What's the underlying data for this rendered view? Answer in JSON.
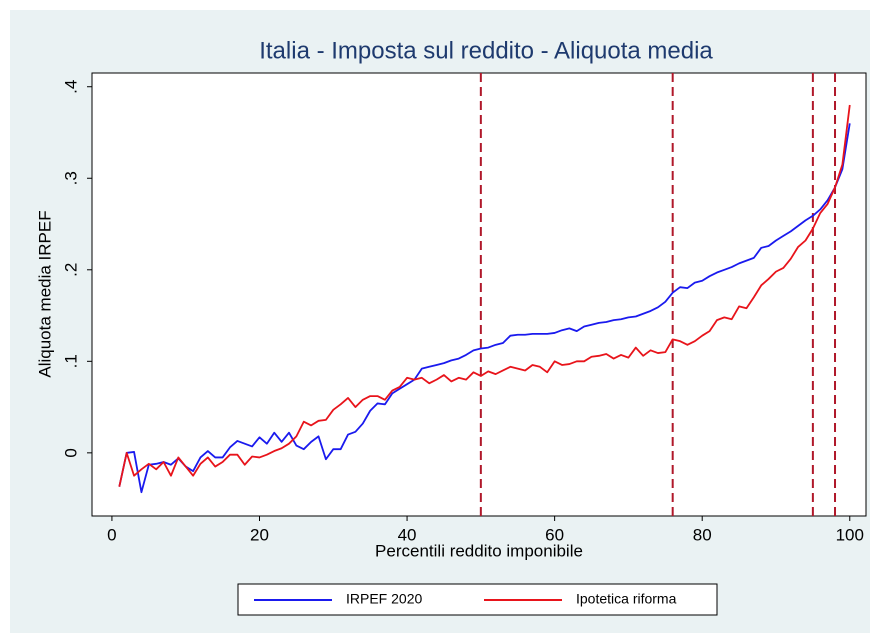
{
  "chart_data": {
    "type": "line",
    "title": "Italia - Imposta sul reddito - Aliquota media",
    "x_label": "Percentili reddito imponibile",
    "y_label": "Aliquota media IRPEF",
    "x": [
      1,
      2,
      3,
      4,
      5,
      6,
      7,
      8,
      9,
      10,
      11,
      12,
      13,
      14,
      15,
      16,
      17,
      18,
      19,
      20,
      21,
      22,
      23,
      24,
      25,
      26,
      27,
      28,
      29,
      30,
      31,
      32,
      33,
      34,
      35,
      36,
      37,
      38,
      39,
      40,
      41,
      42,
      43,
      44,
      45,
      46,
      47,
      48,
      49,
      50,
      51,
      52,
      53,
      54,
      55,
      56,
      57,
      58,
      59,
      60,
      61,
      62,
      63,
      64,
      65,
      66,
      67,
      68,
      69,
      70,
      71,
      72,
      73,
      74,
      75,
      76,
      77,
      78,
      79,
      80,
      81,
      82,
      83,
      84,
      85,
      86,
      87,
      88,
      89,
      90,
      91,
      92,
      93,
      94,
      95,
      96,
      97,
      98,
      99,
      100
    ],
    "series": [
      {
        "name": "IRPEF 2020",
        "color": "#1a1aee",
        "values": [
          -0.037,
          0.0,
          0.001,
          -0.043,
          -0.013,
          -0.012,
          -0.01,
          -0.013,
          -0.006,
          -0.015,
          -0.02,
          -0.005,
          0.002,
          -0.005,
          -0.005,
          0.006,
          0.013,
          0.01,
          0.007,
          0.017,
          0.01,
          0.022,
          0.012,
          0.022,
          0.008,
          0.004,
          0.012,
          0.018,
          -0.007,
          0.004,
          0.004,
          0.02,
          0.023,
          0.032,
          0.046,
          0.054,
          0.053,
          0.065,
          0.07,
          0.075,
          0.08,
          0.092,
          0.094,
          0.096,
          0.098,
          0.101,
          0.103,
          0.107,
          0.112,
          0.114,
          0.115,
          0.118,
          0.12,
          0.128,
          0.129,
          0.129,
          0.13,
          0.13,
          0.13,
          0.131,
          0.134,
          0.136,
          0.133,
          0.138,
          0.14,
          0.142,
          0.143,
          0.145,
          0.146,
          0.148,
          0.149,
          0.152,
          0.155,
          0.159,
          0.165,
          0.175,
          0.181,
          0.18,
          0.186,
          0.188,
          0.193,
          0.197,
          0.2,
          0.203,
          0.207,
          0.21,
          0.213,
          0.224,
          0.226,
          0.232,
          0.237,
          0.242,
          0.248,
          0.254,
          0.259,
          0.266,
          0.276,
          0.29,
          0.31,
          0.36
        ]
      },
      {
        "name": "Ipotetica riforma",
        "color": "#e8141b",
        "values": [
          -0.037,
          0.0,
          -0.025,
          -0.018,
          -0.012,
          -0.018,
          -0.01,
          -0.025,
          -0.005,
          -0.015,
          -0.025,
          -0.012,
          -0.005,
          -0.015,
          -0.01,
          -0.002,
          -0.002,
          -0.013,
          -0.004,
          -0.005,
          -0.002,
          0.002,
          0.005,
          0.01,
          0.018,
          0.034,
          0.03,
          0.035,
          0.036,
          0.047,
          0.053,
          0.06,
          0.05,
          0.058,
          0.062,
          0.062,
          0.058,
          0.068,
          0.072,
          0.082,
          0.08,
          0.082,
          0.076,
          0.08,
          0.085,
          0.078,
          0.082,
          0.08,
          0.088,
          0.084,
          0.089,
          0.086,
          0.09,
          0.094,
          0.092,
          0.09,
          0.096,
          0.094,
          0.088,
          0.1,
          0.096,
          0.097,
          0.1,
          0.1,
          0.105,
          0.106,
          0.108,
          0.103,
          0.107,
          0.104,
          0.115,
          0.106,
          0.112,
          0.109,
          0.11,
          0.124,
          0.122,
          0.118,
          0.122,
          0.128,
          0.133,
          0.145,
          0.148,
          0.146,
          0.16,
          0.158,
          0.17,
          0.183,
          0.19,
          0.198,
          0.202,
          0.212,
          0.225,
          0.232,
          0.245,
          0.262,
          0.272,
          0.29,
          0.315,
          0.38
        ]
      }
    ],
    "xlim": [
      -2.7,
      102.2
    ],
    "ylim": [
      -0.069,
      0.415
    ],
    "xticks": [
      0,
      20,
      40,
      60,
      80,
      100
    ],
    "yticks": [
      0,
      {
        "value": 0.1,
        "label": ".1"
      },
      {
        "value": 0.2,
        "label": ".2"
      },
      {
        "value": 0.3,
        "label": ".3"
      },
      {
        "value": 0.4,
        "label": ".4"
      }
    ],
    "vlines": [
      50,
      76,
      95,
      98
    ],
    "vline_color": "#b0182a",
    "legend": "bottom"
  }
}
